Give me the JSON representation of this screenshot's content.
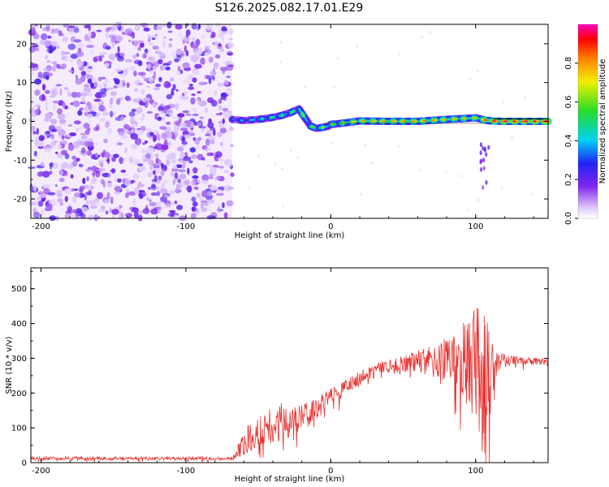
{
  "figure": {
    "title": "S126.2025.082.17.01.E29"
  },
  "chart_data": [
    {
      "type": "heatmap",
      "xlabel": "Height of straight line (km)",
      "ylabel": "Frequency (Hz)",
      "xlim": [
        -207,
        150
      ],
      "ylim": [
        -25,
        25
      ],
      "x_ticks": [
        -200,
        -100,
        0,
        100
      ],
      "y_ticks": [
        -20,
        -10,
        0,
        10,
        20
      ],
      "grid": false,
      "colorbar": {
        "label": "Normalized spectral amplitude",
        "range": [
          0,
          1
        ],
        "ticks": [
          0.0,
          0.2,
          0.4,
          0.6,
          0.8
        ],
        "colormap": "rainbow"
      },
      "noise_region_x": [
        -207,
        -68
      ],
      "ridge": {
        "x": [
          -68,
          -60,
          -50,
          -42,
          -35,
          -28,
          -22,
          -18,
          -14,
          -10,
          -6,
          -2,
          0,
          10,
          20,
          40,
          60,
          80,
          90,
          100,
          108,
          112,
          120,
          140,
          150
        ],
        "y": [
          0.5,
          0.2,
          0.5,
          0.9,
          1.4,
          2.2,
          3.2,
          1.0,
          -1.2,
          -1.8,
          -1.6,
          -1.3,
          -0.8,
          -0.4,
          0.1,
          0.0,
          0.0,
          0.5,
          0.7,
          0.9,
          0.2,
          0.1,
          0.0,
          0.0,
          0.0
        ]
      },
      "ridge_level": {
        "x": [
          -68,
          -40,
          -20,
          0,
          20,
          60,
          100,
          112,
          150
        ],
        "v": [
          0.35,
          0.5,
          0.55,
          0.6,
          0.75,
          0.8,
          0.7,
          0.95,
          0.95
        ]
      }
    },
    {
      "type": "line",
      "xlabel": "Height of straight line (km)",
      "ylabel": "SNR (10 * v/v)",
      "xlim": [
        -207,
        150
      ],
      "ylim": [
        0,
        560
      ],
      "x_ticks": [
        -200,
        -100,
        0,
        100
      ],
      "y_ticks": [
        0,
        100,
        200,
        300,
        400,
        500
      ],
      "grid": false,
      "series": [
        {
          "color": "#e8312f",
          "envelope_x": [
            -207,
            -150,
            -100,
            -68,
            -62,
            -55,
            -45,
            -35,
            -25,
            -15,
            -5,
            5,
            15,
            25,
            35,
            45,
            55,
            65,
            75,
            85,
            95,
            100,
            105,
            110,
            115,
            125,
            135,
            150
          ],
          "envelope_mean": [
            12,
            12,
            12,
            12,
            45,
            80,
            105,
            115,
            125,
            140,
            170,
            200,
            230,
            255,
            270,
            280,
            288,
            292,
            295,
            295,
            285,
            270,
            240,
            250,
            290,
            295,
            292,
            288
          ],
          "envelope_amp": [
            5,
            5,
            5,
            5,
            30,
            45,
            50,
            60,
            40,
            35,
            30,
            25,
            22,
            20,
            20,
            22,
            28,
            38,
            55,
            80,
            140,
            180,
            220,
            200,
            30,
            12,
            12,
            12
          ]
        }
      ]
    }
  ]
}
